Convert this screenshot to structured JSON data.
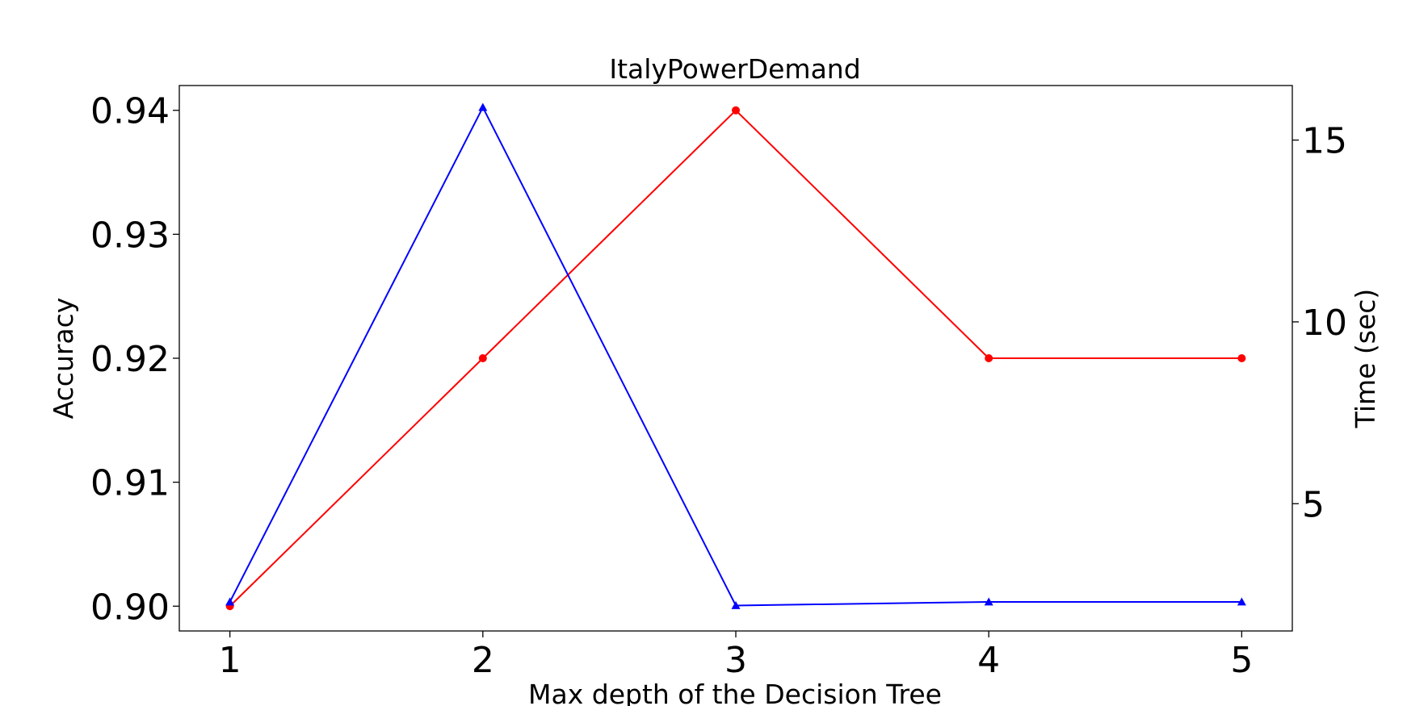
{
  "chart_data": {
    "type": "line",
    "title": "ItalyPowerDemand",
    "xlabel": "Max depth of the Decision Tree",
    "ylabel": "Accuracy",
    "y2label": "Time (sec)",
    "x": [
      1,
      2,
      3,
      4,
      5
    ],
    "xticks": [
      "1",
      "2",
      "3",
      "4",
      "5"
    ],
    "xlim": [
      0.8,
      5.2
    ],
    "ylim": [
      0.898,
      0.942
    ],
    "yticks": [
      "0.90",
      "0.91",
      "0.92",
      "0.93",
      "0.94"
    ],
    "y2lim": [
      1.5,
      16.5
    ],
    "y2ticks": [
      "5",
      "10",
      "15"
    ],
    "grid": false,
    "series": [
      {
        "axis": "left",
        "color": "#ff0000",
        "marker": "circle",
        "values": [
          0.9,
          0.92,
          0.94,
          0.92,
          0.92
        ]
      },
      {
        "axis": "right",
        "color": "#0000ff",
        "marker": "triangle",
        "values": [
          2.3,
          15.9,
          2.2,
          2.3,
          2.3
        ]
      }
    ]
  }
}
